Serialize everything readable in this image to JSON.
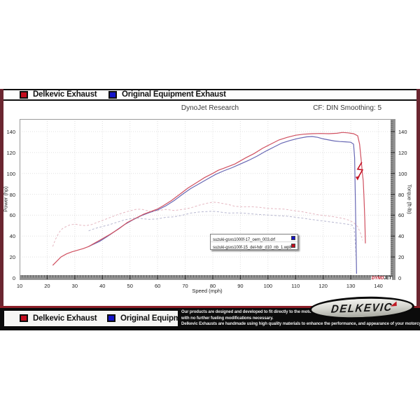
{
  "legend": {
    "items": [
      {
        "label": "Delkevic Exhaust",
        "color": "#c40d1e"
      },
      {
        "label": "Original Equipment Exhaust",
        "color": "#1414c8"
      }
    ]
  },
  "chart_header": {
    "title": "DynoJet Research",
    "smoothing": "CF: DIN Smoothing: 5"
  },
  "chart_data": {
    "type": "line",
    "title": "DynoJet Research",
    "xlabel": "Speed (mph)",
    "ylabel_left": "Power (hp)",
    "ylabel_right": "Torque (ft-lb)",
    "xlim": [
      10,
      146.2
    ],
    "ylim": [
      0,
      152
    ],
    "x_ticks": [
      10,
      20,
      30,
      40,
      50,
      60,
      70,
      80,
      90,
      100,
      110,
      120,
      130,
      140
    ],
    "y_ticks": [
      0,
      20,
      40,
      60,
      80,
      100,
      120,
      140
    ],
    "grid": true,
    "legend_position": "center",
    "series": [
      {
        "name": "power-oem",
        "legend": "Original Equipment Exhaust",
        "axis": "power",
        "color": "#6868b4",
        "dash": "",
        "points": [
          [
            35,
            30
          ],
          [
            37,
            32.5
          ],
          [
            39,
            35
          ],
          [
            42,
            40
          ],
          [
            45,
            45.5
          ],
          [
            48,
            51
          ],
          [
            51,
            55.5
          ],
          [
            54,
            59.5
          ],
          [
            57,
            62.5
          ],
          [
            60,
            65
          ],
          [
            63,
            69
          ],
          [
            66,
            74
          ],
          [
            69,
            80
          ],
          [
            72,
            85.5
          ],
          [
            75,
            90
          ],
          [
            78,
            94.5
          ],
          [
            81,
            99
          ],
          [
            84,
            102.5
          ],
          [
            87,
            105.5
          ],
          [
            90,
            109
          ],
          [
            93,
            112.5
          ],
          [
            96,
            116.5
          ],
          [
            99,
            121
          ],
          [
            102,
            125
          ],
          [
            105,
            129
          ],
          [
            108,
            131.5
          ],
          [
            111,
            133.5
          ],
          [
            114,
            135
          ],
          [
            116,
            135.3
          ],
          [
            118,
            134.5
          ],
          [
            120,
            133
          ],
          [
            122,
            132
          ],
          [
            124,
            131
          ],
          [
            126,
            130.5
          ],
          [
            128,
            130.2
          ],
          [
            130,
            129.8
          ],
          [
            131,
            128
          ],
          [
            131.4,
            115
          ],
          [
            131.7,
            70
          ],
          [
            132,
            20
          ],
          [
            132.1,
            4
          ]
        ]
      },
      {
        "name": "power-delkevic",
        "legend": "Delkevic Exhaust",
        "axis": "power",
        "color": "#d05060",
        "dash": "",
        "points": [
          [
            22,
            12
          ],
          [
            23.5,
            16
          ],
          [
            25,
            20
          ],
          [
            27,
            23
          ],
          [
            29,
            25
          ],
          [
            31,
            26.5
          ],
          [
            33,
            28
          ],
          [
            35,
            30
          ],
          [
            37,
            33
          ],
          [
            40,
            37.5
          ],
          [
            43,
            42
          ],
          [
            46,
            47
          ],
          [
            49,
            53
          ],
          [
            52,
            57
          ],
          [
            55,
            61
          ],
          [
            58,
            64
          ],
          [
            60,
            66
          ],
          [
            62,
            69
          ],
          [
            65,
            74
          ],
          [
            68,
            80
          ],
          [
            71,
            86
          ],
          [
            74,
            91
          ],
          [
            77,
            96
          ],
          [
            80,
            100
          ],
          [
            82,
            103
          ],
          [
            84,
            105
          ],
          [
            86,
            107
          ],
          [
            88,
            109
          ],
          [
            90,
            112
          ],
          [
            92,
            115
          ],
          [
            95,
            119
          ],
          [
            98,
            124
          ],
          [
            101,
            128
          ],
          [
            104,
            132
          ],
          [
            107,
            134.5
          ],
          [
            110,
            136.5
          ],
          [
            113,
            137.5
          ],
          [
            116,
            138
          ],
          [
            119,
            138.2
          ],
          [
            122,
            138
          ],
          [
            125,
            138.4
          ],
          [
            127,
            139.2
          ],
          [
            129,
            138.8
          ],
          [
            131,
            138
          ],
          [
            132.5,
            136
          ],
          [
            133.2,
            128
          ],
          [
            133.8,
            112
          ],
          [
            134.2,
            100
          ],
          [
            134.5,
            93
          ],
          [
            134.8,
            75
          ],
          [
            135.1,
            55
          ],
          [
            135.3,
            33
          ]
        ]
      },
      {
        "name": "torque-oem",
        "legend": "Original Equipment Exhaust",
        "axis": "torque",
        "color": "#aaaac8",
        "dash": "3,2.5",
        "points": [
          [
            35,
            45
          ],
          [
            37,
            47
          ],
          [
            39,
            48.5
          ],
          [
            42,
            50.5
          ],
          [
            45,
            53
          ],
          [
            48,
            55.5
          ],
          [
            51,
            57
          ],
          [
            53,
            57.3
          ],
          [
            55,
            56.5
          ],
          [
            57,
            56
          ],
          [
            60,
            56.5
          ],
          [
            63,
            58
          ],
          [
            66,
            58.5
          ],
          [
            69,
            60
          ],
          [
            72,
            62
          ],
          [
            75,
            63
          ],
          [
            78,
            63.5
          ],
          [
            80,
            63.8
          ],
          [
            82,
            63.3
          ],
          [
            84,
            62.5
          ],
          [
            86,
            62
          ],
          [
            89,
            62.2
          ],
          [
            92,
            61.8
          ],
          [
            95,
            61
          ],
          [
            98,
            60.5
          ],
          [
            101,
            60
          ],
          [
            104,
            59.5
          ],
          [
            107,
            59
          ],
          [
            110,
            58
          ],
          [
            113,
            57
          ],
          [
            116,
            55.8
          ],
          [
            119,
            54.8
          ],
          [
            122,
            53.8
          ],
          [
            125,
            52.8
          ],
          [
            127,
            52
          ],
          [
            129,
            51.3
          ],
          [
            130.5,
            50.5
          ],
          [
            131.2,
            47
          ],
          [
            131.6,
            35
          ],
          [
            131.9,
            15
          ]
        ]
      },
      {
        "name": "torque-delkevic",
        "legend": "Delkevic Exhaust",
        "axis": "torque",
        "color": "#e0aab6",
        "dash": "3,2.5",
        "points": [
          [
            22,
            30
          ],
          [
            23,
            37
          ],
          [
            24,
            42
          ],
          [
            25,
            46
          ],
          [
            26,
            48
          ],
          [
            28,
            50.5
          ],
          [
            30,
            51.5
          ],
          [
            32,
            50.5
          ],
          [
            34,
            50
          ],
          [
            36,
            51
          ],
          [
            38,
            53
          ],
          [
            40,
            55
          ],
          [
            43,
            58
          ],
          [
            46,
            61
          ],
          [
            49,
            63.5
          ],
          [
            52,
            65.5
          ],
          [
            54,
            65.8
          ],
          [
            56,
            64.5
          ],
          [
            58,
            63.5
          ],
          [
            60,
            64.5
          ],
          [
            63,
            65.5
          ],
          [
            66,
            64.5
          ],
          [
            69,
            65.5
          ],
          [
            72,
            67
          ],
          [
            75,
            69.5
          ],
          [
            78,
            71.5
          ],
          [
            80,
            72.5
          ],
          [
            82,
            72
          ],
          [
            84,
            71
          ],
          [
            86,
            70
          ],
          [
            88,
            68.5
          ],
          [
            91,
            68
          ],
          [
            94,
            68.2
          ],
          [
            97,
            67.5
          ],
          [
            100,
            66.5
          ],
          [
            103,
            66.2
          ],
          [
            106,
            65.8
          ],
          [
            109,
            64.5
          ],
          [
            112,
            63.5
          ],
          [
            115,
            62
          ],
          [
            118,
            60.5
          ],
          [
            121,
            59.5
          ],
          [
            124,
            58.5
          ],
          [
            127,
            57
          ],
          [
            129,
            55.5
          ],
          [
            131,
            53
          ],
          [
            132.5,
            49
          ],
          [
            133.5,
            43
          ],
          [
            134.3,
            36
          ]
        ]
      }
    ],
    "inner_legend": [
      {
        "file": "suzuki-gsxs1000f-17_oem_003.drf",
        "color": "#1414c8"
      },
      {
        "file": "suzuki-gsxs100f-15_del-hdr_d10_nb_1.wp8",
        "color": "#c40d1e"
      }
    ],
    "annotations": [
      {
        "type": "drop-arrow",
        "x": 133.5,
        "y": 100,
        "color": "#c31325"
      }
    ],
    "watermark": {
      "red": "DYNO",
      "black": "JET"
    }
  },
  "footer": {
    "blurb_lines": [
      "Our products are designed and developed to fit directly to the motorcycle",
      "with no further fueling modifications necessary.",
      "Delkevic Exhausts are handmade using high quality materials to enhance the performance, and appearance of your motorcycle."
    ],
    "logo_text": "DELKEVIC"
  },
  "colors": {
    "delkevic_red": "#c40d1e",
    "oem_blue": "#1414c8",
    "maroon": "#6b2630"
  }
}
